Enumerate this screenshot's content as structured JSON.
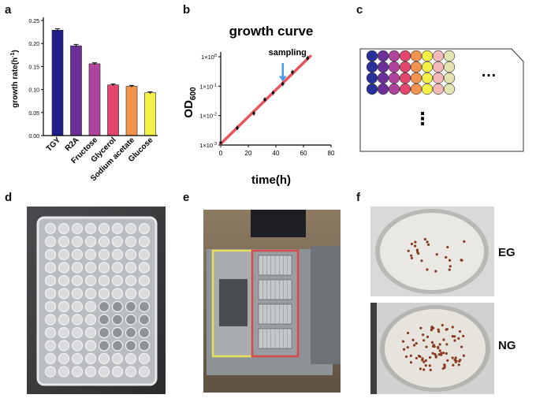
{
  "panels": {
    "a": {
      "label": "a"
    },
    "b": {
      "label": "b"
    },
    "c": {
      "label": "c"
    },
    "d": {
      "label": "d"
    },
    "e": {
      "label": "e"
    },
    "f": {
      "label": "f"
    }
  },
  "chart_data": [
    {
      "type": "bar",
      "panel": "a",
      "categories": [
        "TGY",
        "R2A",
        "Fructose",
        "Glycerol",
        "Sodium acetate",
        "Glucose"
      ],
      "values": [
        0.229,
        0.195,
        0.156,
        0.11,
        0.107,
        0.093
      ],
      "errors": [
        0.003,
        0.003,
        0.002,
        0.002,
        0.002,
        0.002
      ],
      "colors": [
        "#1f1f8c",
        "#6b2f9a",
        "#b0439c",
        "#e2456e",
        "#f4934d",
        "#f4f04a"
      ],
      "ylabel": "growth rate(h",
      "ylabel_sup": "-1",
      "ylabel_tail": ")",
      "ylim": [
        0,
        0.25
      ],
      "yticks": [
        "0.00",
        "0.05",
        "0.10",
        "0.15",
        "0.20",
        "0.25"
      ]
    },
    {
      "type": "line",
      "panel": "b",
      "title": "growth curve",
      "xlabel": "time(h)",
      "ylabel": "OD",
      "ylabel_sub": "600",
      "yscale": "log",
      "xlim": [
        0,
        80
      ],
      "ylim": [
        0.001,
        1
      ],
      "xticks": [
        "0",
        "20",
        "40",
        "60",
        "80"
      ],
      "ytick_base": "1×10",
      "ytick_exps": [
        "-3",
        "-2",
        "-1",
        "0"
      ],
      "points": [
        [
          0,
          0.0012
        ],
        [
          12,
          0.0038
        ],
        [
          24,
          0.012
        ],
        [
          32,
          0.035
        ],
        [
          38,
          0.06
        ],
        [
          45,
          0.12
        ],
        [
          52,
          0.3
        ],
        [
          63,
          0.9
        ]
      ],
      "fit_line": [
        [
          0,
          0.0011
        ],
        [
          65,
          1.05
        ]
      ],
      "annotation": "sampling",
      "annotation_x": 45,
      "line_color": "#e8555c",
      "marker_color": "#111111",
      "arrow_color": "#4a9be8"
    }
  ],
  "panel_c": {
    "ellipsis_right": "…",
    "ellipsis_down": "⋮",
    "well_colors": [
      "#2a2f9a",
      "#6b2f9a",
      "#b0439c",
      "#e2456e",
      "#f4934d",
      "#f4f04a",
      "#f4b8b8",
      "#e4e4b0"
    ]
  },
  "panel_f": {
    "top_label": "EG",
    "bottom_label": "NG"
  }
}
